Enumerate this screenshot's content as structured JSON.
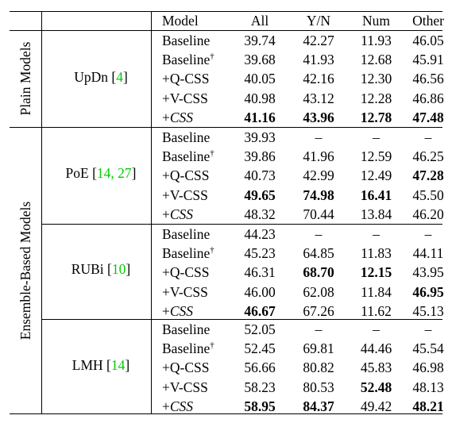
{
  "header": {
    "model": "Model",
    "all": "All",
    "yn": "Y/N",
    "num": "Num",
    "other": "Other"
  },
  "groups": [
    {
      "label": "Plain Models"
    },
    {
      "label": "Ensemble-Based Models"
    }
  ],
  "methods": [
    {
      "name": "UpDn",
      "cite_open": "[",
      "cite": "4",
      "cite_close": "]"
    },
    {
      "name": "PoE",
      "cite_open": "[",
      "cite": "14, 27",
      "cite_close": "]"
    },
    {
      "name": "RUBi",
      "cite_open": "[",
      "cite": "10",
      "cite_close": "]"
    },
    {
      "name": "LMH",
      "cite_open": "[",
      "cite": "14",
      "cite_close": "]"
    }
  ],
  "dagger": "†",
  "plus": "+",
  "css_name": "CSS",
  "rows": [
    {
      "model": "Baseline",
      "all": "39.74",
      "yn": "42.27",
      "num": "11.93",
      "other": "46.05"
    },
    {
      "model": "Baseline",
      "all": "39.68",
      "yn": "41.93",
      "num": "12.68",
      "other": "45.91"
    },
    {
      "model": "+Q-CSS",
      "all": "40.05",
      "yn": "42.16",
      "num": "12.30",
      "other": "46.56"
    },
    {
      "model": "+V-CSS",
      "all": "40.98",
      "yn": "43.12",
      "num": "12.28",
      "other": "46.86"
    },
    {
      "model": "",
      "all": "41.16",
      "yn": "43.96",
      "num": "12.78",
      "other": "47.48"
    },
    {
      "model": "Baseline",
      "all": "39.93",
      "yn": "–",
      "num": "–",
      "other": "–"
    },
    {
      "model": "Baseline",
      "all": "39.86",
      "yn": "41.96",
      "num": "12.59",
      "other": "46.25"
    },
    {
      "model": "+Q-CSS",
      "all": "40.73",
      "yn": "42.99",
      "num": "12.49",
      "other": "47.28"
    },
    {
      "model": "+V-CSS",
      "all": "49.65",
      "yn": "74.98",
      "num": "16.41",
      "other": "45.50"
    },
    {
      "model": "",
      "all": "48.32",
      "yn": "70.44",
      "num": "13.84",
      "other": "46.20"
    },
    {
      "model": "Baseline",
      "all": "44.23",
      "yn": "–",
      "num": "–",
      "other": "–"
    },
    {
      "model": "Baseline",
      "all": "45.23",
      "yn": "64.85",
      "num": "11.83",
      "other": "44.11"
    },
    {
      "model": "+Q-CSS",
      "all": "46.31",
      "yn": "68.70",
      "num": "12.15",
      "other": "43.95"
    },
    {
      "model": "+V-CSS",
      "all": "46.00",
      "yn": "62.08",
      "num": "11.84",
      "other": "46.95"
    },
    {
      "model": "",
      "all": "46.67",
      "yn": "67.26",
      "num": "11.62",
      "other": "45.13"
    },
    {
      "model": "Baseline",
      "all": "52.05",
      "yn": "–",
      "num": "–",
      "other": "–"
    },
    {
      "model": "Baseline",
      "all": "52.45",
      "yn": "69.81",
      "num": "44.46",
      "other": "45.54"
    },
    {
      "model": "+Q-CSS",
      "all": "56.66",
      "yn": "80.82",
      "num": "45.83",
      "other": "46.98"
    },
    {
      "model": "+V-CSS",
      "all": "58.23",
      "yn": "80.53",
      "num": "52.48",
      "other": "48.13"
    },
    {
      "model": "",
      "all": "58.95",
      "yn": "84.37",
      "num": "49.42",
      "other": "48.21"
    }
  ]
}
